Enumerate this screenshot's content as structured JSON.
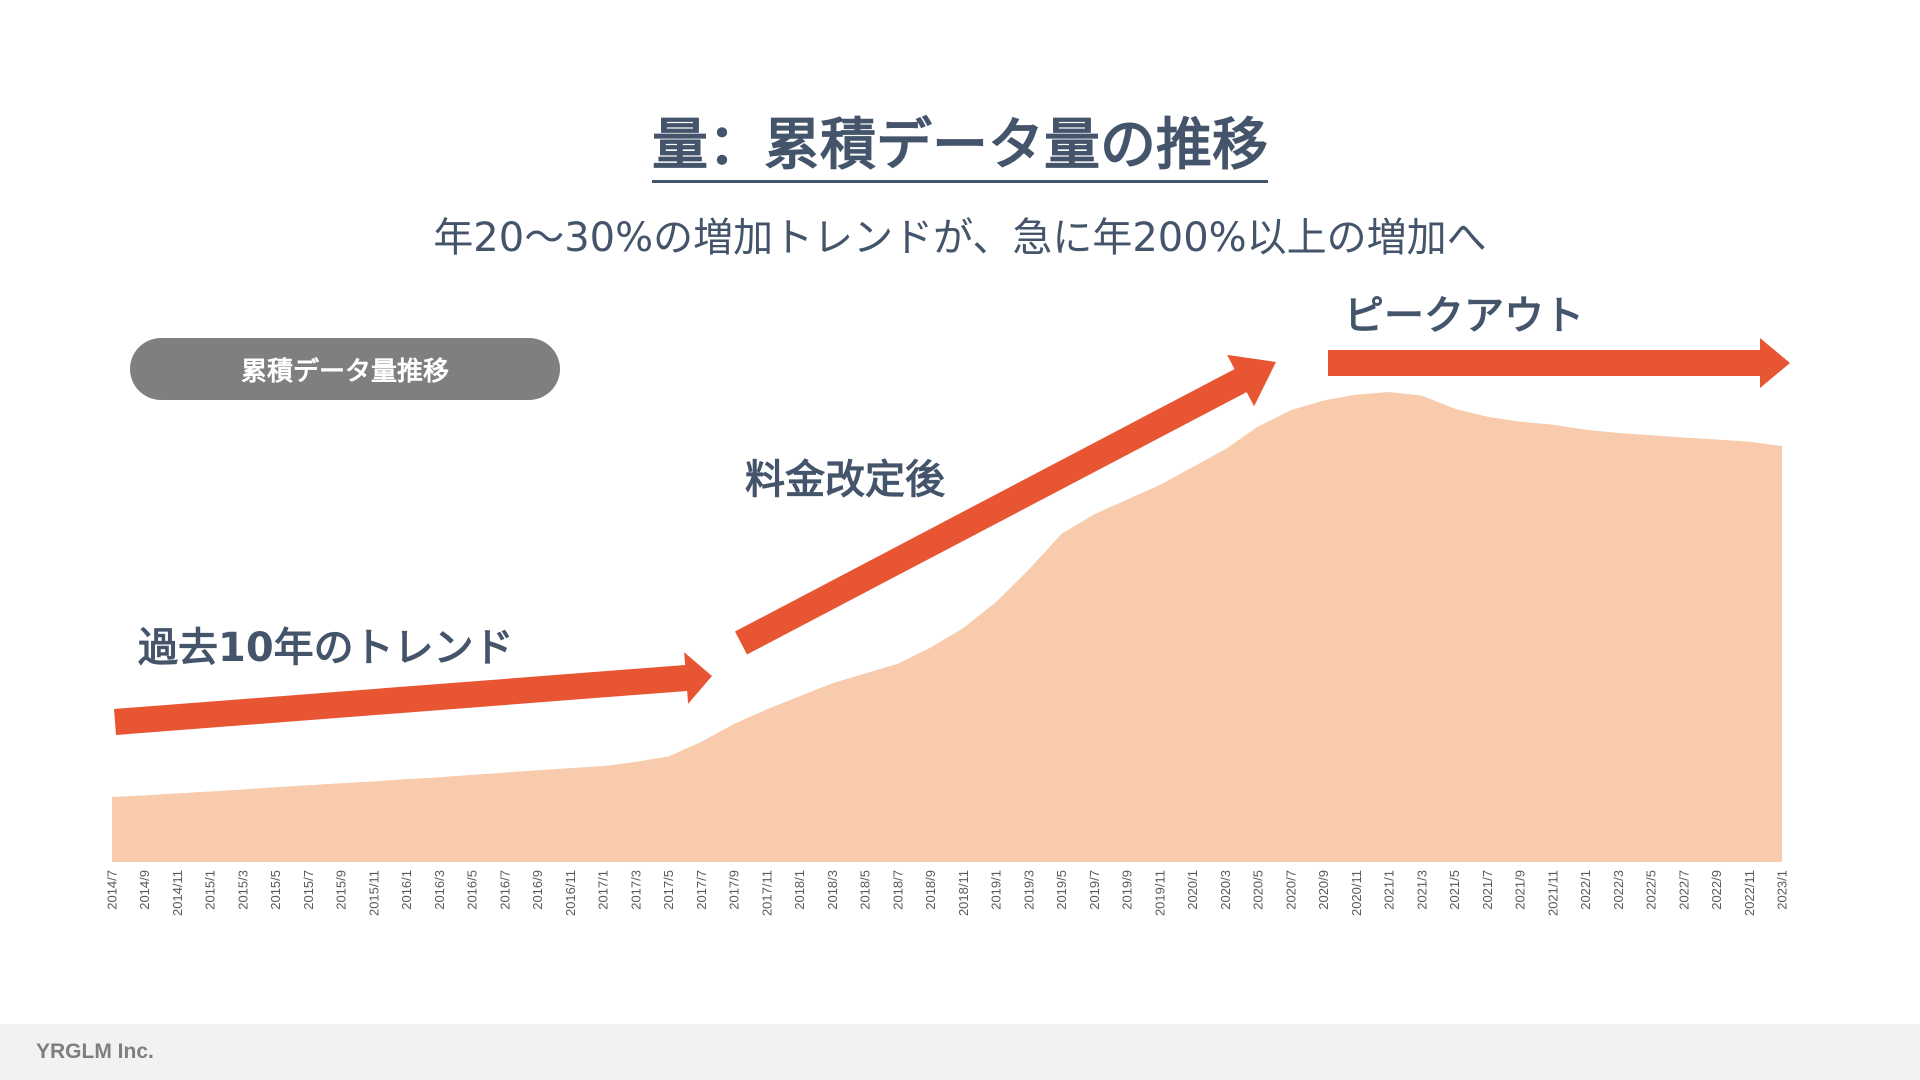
{
  "title": "量：累積データ量の推移",
  "subtitle": "年20〜30%の増加トレンドが、急に年200%以上の増加へ",
  "legend_pill": "累積データ量推移",
  "annotations": {
    "past_trend": "過去10年のトレンド",
    "after_price_change": "料金改定後",
    "peak_out": "ピークアウト"
  },
  "footer": {
    "company": "YRGLM Inc."
  },
  "colors": {
    "area_fill": "#f7cbac",
    "arrow": "#e85533",
    "text": "#44546a",
    "pill": "#7f7f7f",
    "footer_bg": "#f2f2f2"
  },
  "chart_data": {
    "type": "area",
    "title": "",
    "xlabel": "",
    "ylabel": "",
    "y_axis_shown": false,
    "grid": false,
    "categories": [
      "2014/7",
      "2014/9",
      "2014/11",
      "2015/1",
      "2015/3",
      "2015/5",
      "2015/7",
      "2015/9",
      "2015/11",
      "2016/1",
      "2016/3",
      "2016/5",
      "2016/7",
      "2016/9",
      "2016/11",
      "2017/1",
      "2017/3",
      "2017/5",
      "2017/7",
      "2017/9",
      "2017/11",
      "2018/1",
      "2018/3",
      "2018/5",
      "2018/7",
      "2018/9",
      "2018/11",
      "2019/1",
      "2019/3",
      "2019/5",
      "2019/7",
      "2019/9",
      "2019/11",
      "2020/1",
      "2020/3",
      "2020/5",
      "2020/7",
      "2020/9",
      "2020/11",
      "2021/1",
      "2021/3",
      "2021/5",
      "2021/7",
      "2021/9",
      "2021/11",
      "2022/1",
      "2022/3",
      "2022/5",
      "2022/7",
      "2022/9",
      "2022/11",
      "2023/1"
    ],
    "values": [
      20,
      20.5,
      21.1,
      21.7,
      22.3,
      23,
      23.6,
      24.2,
      24.8,
      25.5,
      26.1,
      26.8,
      27.5,
      28.2,
      28.9,
      29.5,
      30.8,
      32.5,
      37,
      42.5,
      47,
      51,
      55,
      58,
      61,
      66,
      72,
      80,
      90,
      101,
      107,
      111.5,
      116,
      121.5,
      127,
      134,
      139,
      142,
      143.8,
      144.6,
      143.5,
      139.5,
      137,
      135.5,
      134.5,
      133,
      132,
      131.3,
      130.6,
      130,
      129.3,
      128
    ]
  }
}
